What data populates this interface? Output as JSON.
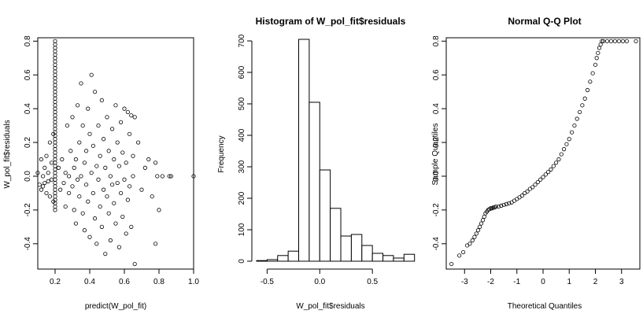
{
  "chart_data": [
    {
      "type": "scatter",
      "title": "",
      "xlabel": "predict(W_pol_fit)",
      "ylabel": "W_pol_fit$residuals",
      "xlim": [
        0.1,
        1.0
      ],
      "ylim": [
        -0.55,
        0.82
      ],
      "x_ticks": [
        "0.2",
        "0.4",
        "0.6",
        "0.8",
        "1.0"
      ],
      "y_ticks": [
        "-0.4",
        "-0.2",
        "0.0",
        "0.2",
        "0.4",
        "0.6",
        "0.8"
      ],
      "column_x": 0.2,
      "column_y_range": [
        -0.2,
        0.8
      ],
      "points": [
        [
          0.1,
          0.02
        ],
        [
          0.11,
          -0.05
        ],
        [
          0.12,
          0.1
        ],
        [
          0.12,
          -0.08
        ],
        [
          0.13,
          0.0
        ],
        [
          0.13,
          -0.06
        ],
        [
          0.14,
          0.05
        ],
        [
          0.14,
          -0.04
        ],
        [
          0.15,
          0.12
        ],
        [
          0.15,
          -0.1
        ],
        [
          0.16,
          0.02
        ],
        [
          0.16,
          -0.03
        ],
        [
          0.17,
          0.2
        ],
        [
          0.17,
          -0.12
        ],
        [
          0.18,
          0.08
        ],
        [
          0.18,
          -0.02
        ],
        [
          0.19,
          0.25
        ],
        [
          0.19,
          -0.15
        ],
        [
          0.22,
          0.05
        ],
        [
          0.23,
          -0.08
        ],
        [
          0.24,
          0.1
        ],
        [
          0.25,
          -0.04
        ],
        [
          0.26,
          0.02
        ],
        [
          0.26,
          -0.18
        ],
        [
          0.27,
          0.3
        ],
        [
          0.28,
          0.0
        ],
        [
          0.28,
          -0.1
        ],
        [
          0.29,
          0.15
        ],
        [
          0.3,
          -0.06
        ],
        [
          0.3,
          0.35
        ],
        [
          0.31,
          0.05
        ],
        [
          0.31,
          -0.2
        ],
        [
          0.32,
          0.1
        ],
        [
          0.32,
          -0.28
        ],
        [
          0.33,
          0.42
        ],
        [
          0.33,
          -0.02
        ],
        [
          0.34,
          0.2
        ],
        [
          0.34,
          -0.12
        ],
        [
          0.35,
          0.55
        ],
        [
          0.35,
          0.0
        ],
        [
          0.36,
          -0.22
        ],
        [
          0.36,
          0.3
        ],
        [
          0.37,
          0.08
        ],
        [
          0.37,
          -0.32
        ],
        [
          0.38,
          0.15
        ],
        [
          0.38,
          -0.05
        ],
        [
          0.39,
          0.4
        ],
        [
          0.39,
          -0.15
        ],
        [
          0.4,
          0.25
        ],
        [
          0.4,
          -0.36
        ],
        [
          0.41,
          0.6
        ],
        [
          0.41,
          0.02
        ],
        [
          0.42,
          -0.1
        ],
        [
          0.42,
          0.18
        ],
        [
          0.43,
          -0.25
        ],
        [
          0.43,
          0.5
        ],
        [
          0.44,
          0.06
        ],
        [
          0.44,
          -0.4
        ],
        [
          0.45,
          0.3
        ],
        [
          0.45,
          -0.02
        ],
        [
          0.46,
          0.12
        ],
        [
          0.46,
          -0.18
        ],
        [
          0.47,
          0.45
        ],
        [
          0.47,
          -0.3
        ],
        [
          0.48,
          0.22
        ],
        [
          0.48,
          -0.08
        ],
        [
          0.49,
          0.05
        ],
        [
          0.49,
          -0.46
        ],
        [
          0.5,
          0.35
        ],
        [
          0.5,
          -0.12
        ],
        [
          0.51,
          0.15
        ],
        [
          0.51,
          -0.22
        ],
        [
          0.52,
          0.0
        ],
        [
          0.52,
          -0.38
        ],
        [
          0.53,
          0.28
        ],
        [
          0.53,
          -0.05
        ],
        [
          0.54,
          0.1
        ],
        [
          0.54,
          -0.16
        ],
        [
          0.55,
          0.42
        ],
        [
          0.55,
          -0.28
        ],
        [
          0.56,
          0.2
        ],
        [
          0.56,
          -0.04
        ],
        [
          0.57,
          0.06
        ],
        [
          0.57,
          -0.42
        ],
        [
          0.58,
          0.32
        ],
        [
          0.58,
          -0.1
        ],
        [
          0.59,
          0.14
        ],
        [
          0.59,
          -0.24
        ],
        [
          0.6,
          0.4
        ],
        [
          0.6,
          -0.02
        ],
        [
          0.61,
          0.08
        ],
        [
          0.61,
          -0.34
        ],
        [
          0.62,
          0.38
        ],
        [
          0.62,
          -0.14
        ],
        [
          0.63,
          0.25
        ],
        [
          0.63,
          -0.06
        ],
        [
          0.64,
          0.36
        ],
        [
          0.64,
          -0.3
        ],
        [
          0.65,
          0.12
        ],
        [
          0.65,
          0.0
        ],
        [
          0.66,
          0.35
        ],
        [
          0.66,
          -0.52
        ],
        [
          0.68,
          0.2
        ],
        [
          0.7,
          -0.08
        ],
        [
          0.72,
          0.05
        ],
        [
          0.74,
          0.1
        ],
        [
          0.76,
          -0.12
        ],
        [
          0.78,
          0.08
        ],
        [
          0.78,
          -0.4
        ],
        [
          0.79,
          0.0
        ],
        [
          0.8,
          -0.2
        ],
        [
          0.82,
          0.0
        ],
        [
          0.86,
          0.0
        ],
        [
          0.87,
          0.0
        ],
        [
          1.0,
          0.0
        ]
      ]
    },
    {
      "type": "bar",
      "title": "Histogram of W_pol_fit$residuals",
      "xlabel": "W_pol_fit$residuals",
      "ylabel": "Frequency",
      "xlim": [
        -0.6,
        0.85
      ],
      "ylim": [
        0,
        730
      ],
      "x_ticks": [
        "-0.5",
        "0.0",
        "0.5"
      ],
      "y_ticks": [
        "0",
        "100",
        "200",
        "300",
        "400",
        "500",
        "600",
        "700"
      ],
      "bin_width": 0.1,
      "bin_edges": [
        -0.6,
        -0.5,
        -0.4,
        -0.3,
        -0.2,
        -0.1,
        0.0,
        0.1,
        0.2,
        0.3,
        0.4,
        0.5,
        0.6,
        0.7,
        0.8
      ],
      "values": [
        2,
        5,
        18,
        32,
        705,
        505,
        290,
        168,
        80,
        85,
        50,
        25,
        18,
        10,
        22
      ]
    },
    {
      "type": "scatter",
      "title": "Normal Q-Q Plot",
      "xlabel": "Theoretical Quantiles",
      "ylabel": "Sample Quantiles",
      "xlim": [
        -3.7,
        3.7
      ],
      "ylim": [
        -0.55,
        0.82
      ],
      "x_ticks": [
        "-3",
        "-2",
        "-1",
        "0",
        "1",
        "2",
        "3"
      ],
      "y_ticks": [
        "-0.4",
        "-0.2",
        "0.0",
        "0.2",
        "0.4",
        "0.6",
        "0.8"
      ],
      "points": [
        [
          -3.5,
          -0.52
        ],
        [
          -3.2,
          -0.47
        ],
        [
          -3.05,
          -0.45
        ],
        [
          -2.9,
          -0.41
        ],
        [
          -2.8,
          -0.4
        ],
        [
          -2.7,
          -0.38
        ],
        [
          -2.62,
          -0.36
        ],
        [
          -2.55,
          -0.34
        ],
        [
          -2.48,
          -0.32
        ],
        [
          -2.42,
          -0.3
        ],
        [
          -2.36,
          -0.28
        ],
        [
          -2.3,
          -0.26
        ],
        [
          -2.25,
          -0.24
        ],
        [
          -2.2,
          -0.22
        ],
        [
          -2.15,
          -0.21
        ],
        [
          -2.1,
          -0.2
        ],
        [
          -2.05,
          -0.195
        ],
        [
          -2.0,
          -0.19
        ],
        [
          -1.95,
          -0.19
        ],
        [
          -1.9,
          -0.185
        ],
        [
          -1.85,
          -0.185
        ],
        [
          -1.8,
          -0.18
        ],
        [
          -1.7,
          -0.18
        ],
        [
          -1.6,
          -0.175
        ],
        [
          -1.5,
          -0.17
        ],
        [
          -1.4,
          -0.165
        ],
        [
          -1.3,
          -0.16
        ],
        [
          -1.2,
          -0.155
        ],
        [
          -1.1,
          -0.145
        ],
        [
          -1.0,
          -0.135
        ],
        [
          -0.9,
          -0.125
        ],
        [
          -0.8,
          -0.115
        ],
        [
          -0.7,
          -0.1
        ],
        [
          -0.6,
          -0.09
        ],
        [
          -0.5,
          -0.075
        ],
        [
          -0.4,
          -0.065
        ],
        [
          -0.3,
          -0.05
        ],
        [
          -0.2,
          -0.035
        ],
        [
          -0.1,
          -0.02
        ],
        [
          0.0,
          -0.005
        ],
        [
          0.1,
          0.01
        ],
        [
          0.2,
          0.025
        ],
        [
          0.3,
          0.04
        ],
        [
          0.4,
          0.06
        ],
        [
          0.5,
          0.08
        ],
        [
          0.6,
          0.1
        ],
        [
          0.7,
          0.13
        ],
        [
          0.8,
          0.16
        ],
        [
          0.9,
          0.19
        ],
        [
          1.0,
          0.22
        ],
        [
          1.1,
          0.26
        ],
        [
          1.2,
          0.3
        ],
        [
          1.3,
          0.34
        ],
        [
          1.4,
          0.38
        ],
        [
          1.5,
          0.42
        ],
        [
          1.6,
          0.46
        ],
        [
          1.7,
          0.51
        ],
        [
          1.8,
          0.56
        ],
        [
          1.9,
          0.61
        ],
        [
          2.0,
          0.66
        ],
        [
          2.05,
          0.7
        ],
        [
          2.1,
          0.73
        ],
        [
          2.15,
          0.76
        ],
        [
          2.2,
          0.78
        ],
        [
          2.25,
          0.8
        ],
        [
          2.3,
          0.8
        ],
        [
          2.45,
          0.8
        ],
        [
          2.6,
          0.8
        ],
        [
          2.75,
          0.8
        ],
        [
          2.9,
          0.8
        ],
        [
          3.05,
          0.8
        ],
        [
          3.2,
          0.8
        ],
        [
          3.55,
          0.8
        ]
      ]
    }
  ]
}
